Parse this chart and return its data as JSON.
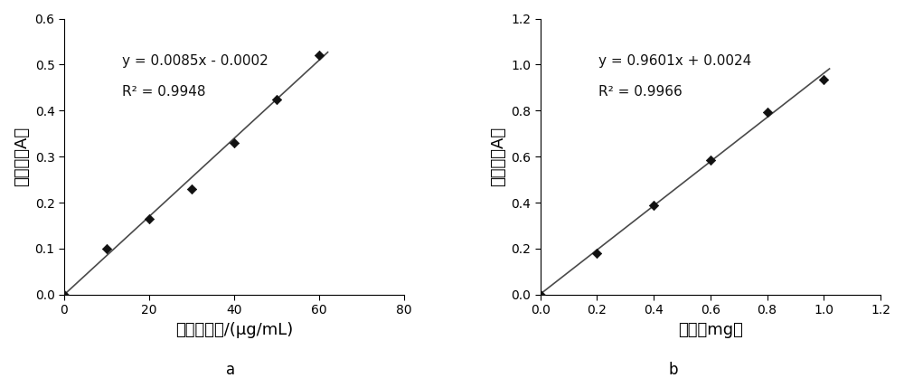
{
  "plot_a": {
    "x_data": [
      0,
      10,
      20,
      30,
      40,
      50,
      60
    ],
    "y_data": [
      0,
      0.1,
      0.165,
      0.23,
      0.33,
      0.425,
      0.52
    ],
    "slope": 0.0085,
    "intercept": -0.0002,
    "r2": 0.9948,
    "equation": "y = 0.0085x - 0.0002",
    "r2_label": "R² = 0.9948",
    "xlabel": "半乳糖醒酸/(μg/mL)",
    "ylabel": "吸光度（A）",
    "xlim": [
      0,
      80
    ],
    "ylim": [
      0,
      0.6
    ],
    "xticks": [
      0,
      20,
      40,
      60,
      80
    ],
    "yticks": [
      0.0,
      0.1,
      0.2,
      0.3,
      0.4,
      0.5,
      0.6
    ],
    "label": "a",
    "line_xmax": 62
  },
  "plot_b": {
    "x_data": [
      0,
      0.2,
      0.4,
      0.6,
      0.8,
      1.0
    ],
    "y_data": [
      0,
      0.18,
      0.39,
      0.585,
      0.795,
      0.935
    ],
    "slope": 0.9601,
    "intercept": 0.0024,
    "r2": 0.9966,
    "equation": "y = 0.9601x + 0.0024",
    "r2_label": "R² = 0.9966",
    "xlabel": "木糖（mg）",
    "ylabel": "吸光度（A）",
    "xlim": [
      0,
      1.2
    ],
    "ylim": [
      0,
      1.2
    ],
    "xticks": [
      0,
      0.2,
      0.4,
      0.6,
      0.8,
      1.0,
      1.2
    ],
    "yticks": [
      0.0,
      0.2,
      0.4,
      0.6,
      0.8,
      1.0,
      1.2
    ],
    "label": "b",
    "line_xmax": 1.02
  },
  "line_color": "#4a4a4a",
  "marker_color": "#111111",
  "text_color": "#111111",
  "bg_color": "#ffffff",
  "annotation_fontsize": 11,
  "axis_label_fontsize": 13,
  "tick_fontsize": 10,
  "subplot_label_fontsize": 12
}
